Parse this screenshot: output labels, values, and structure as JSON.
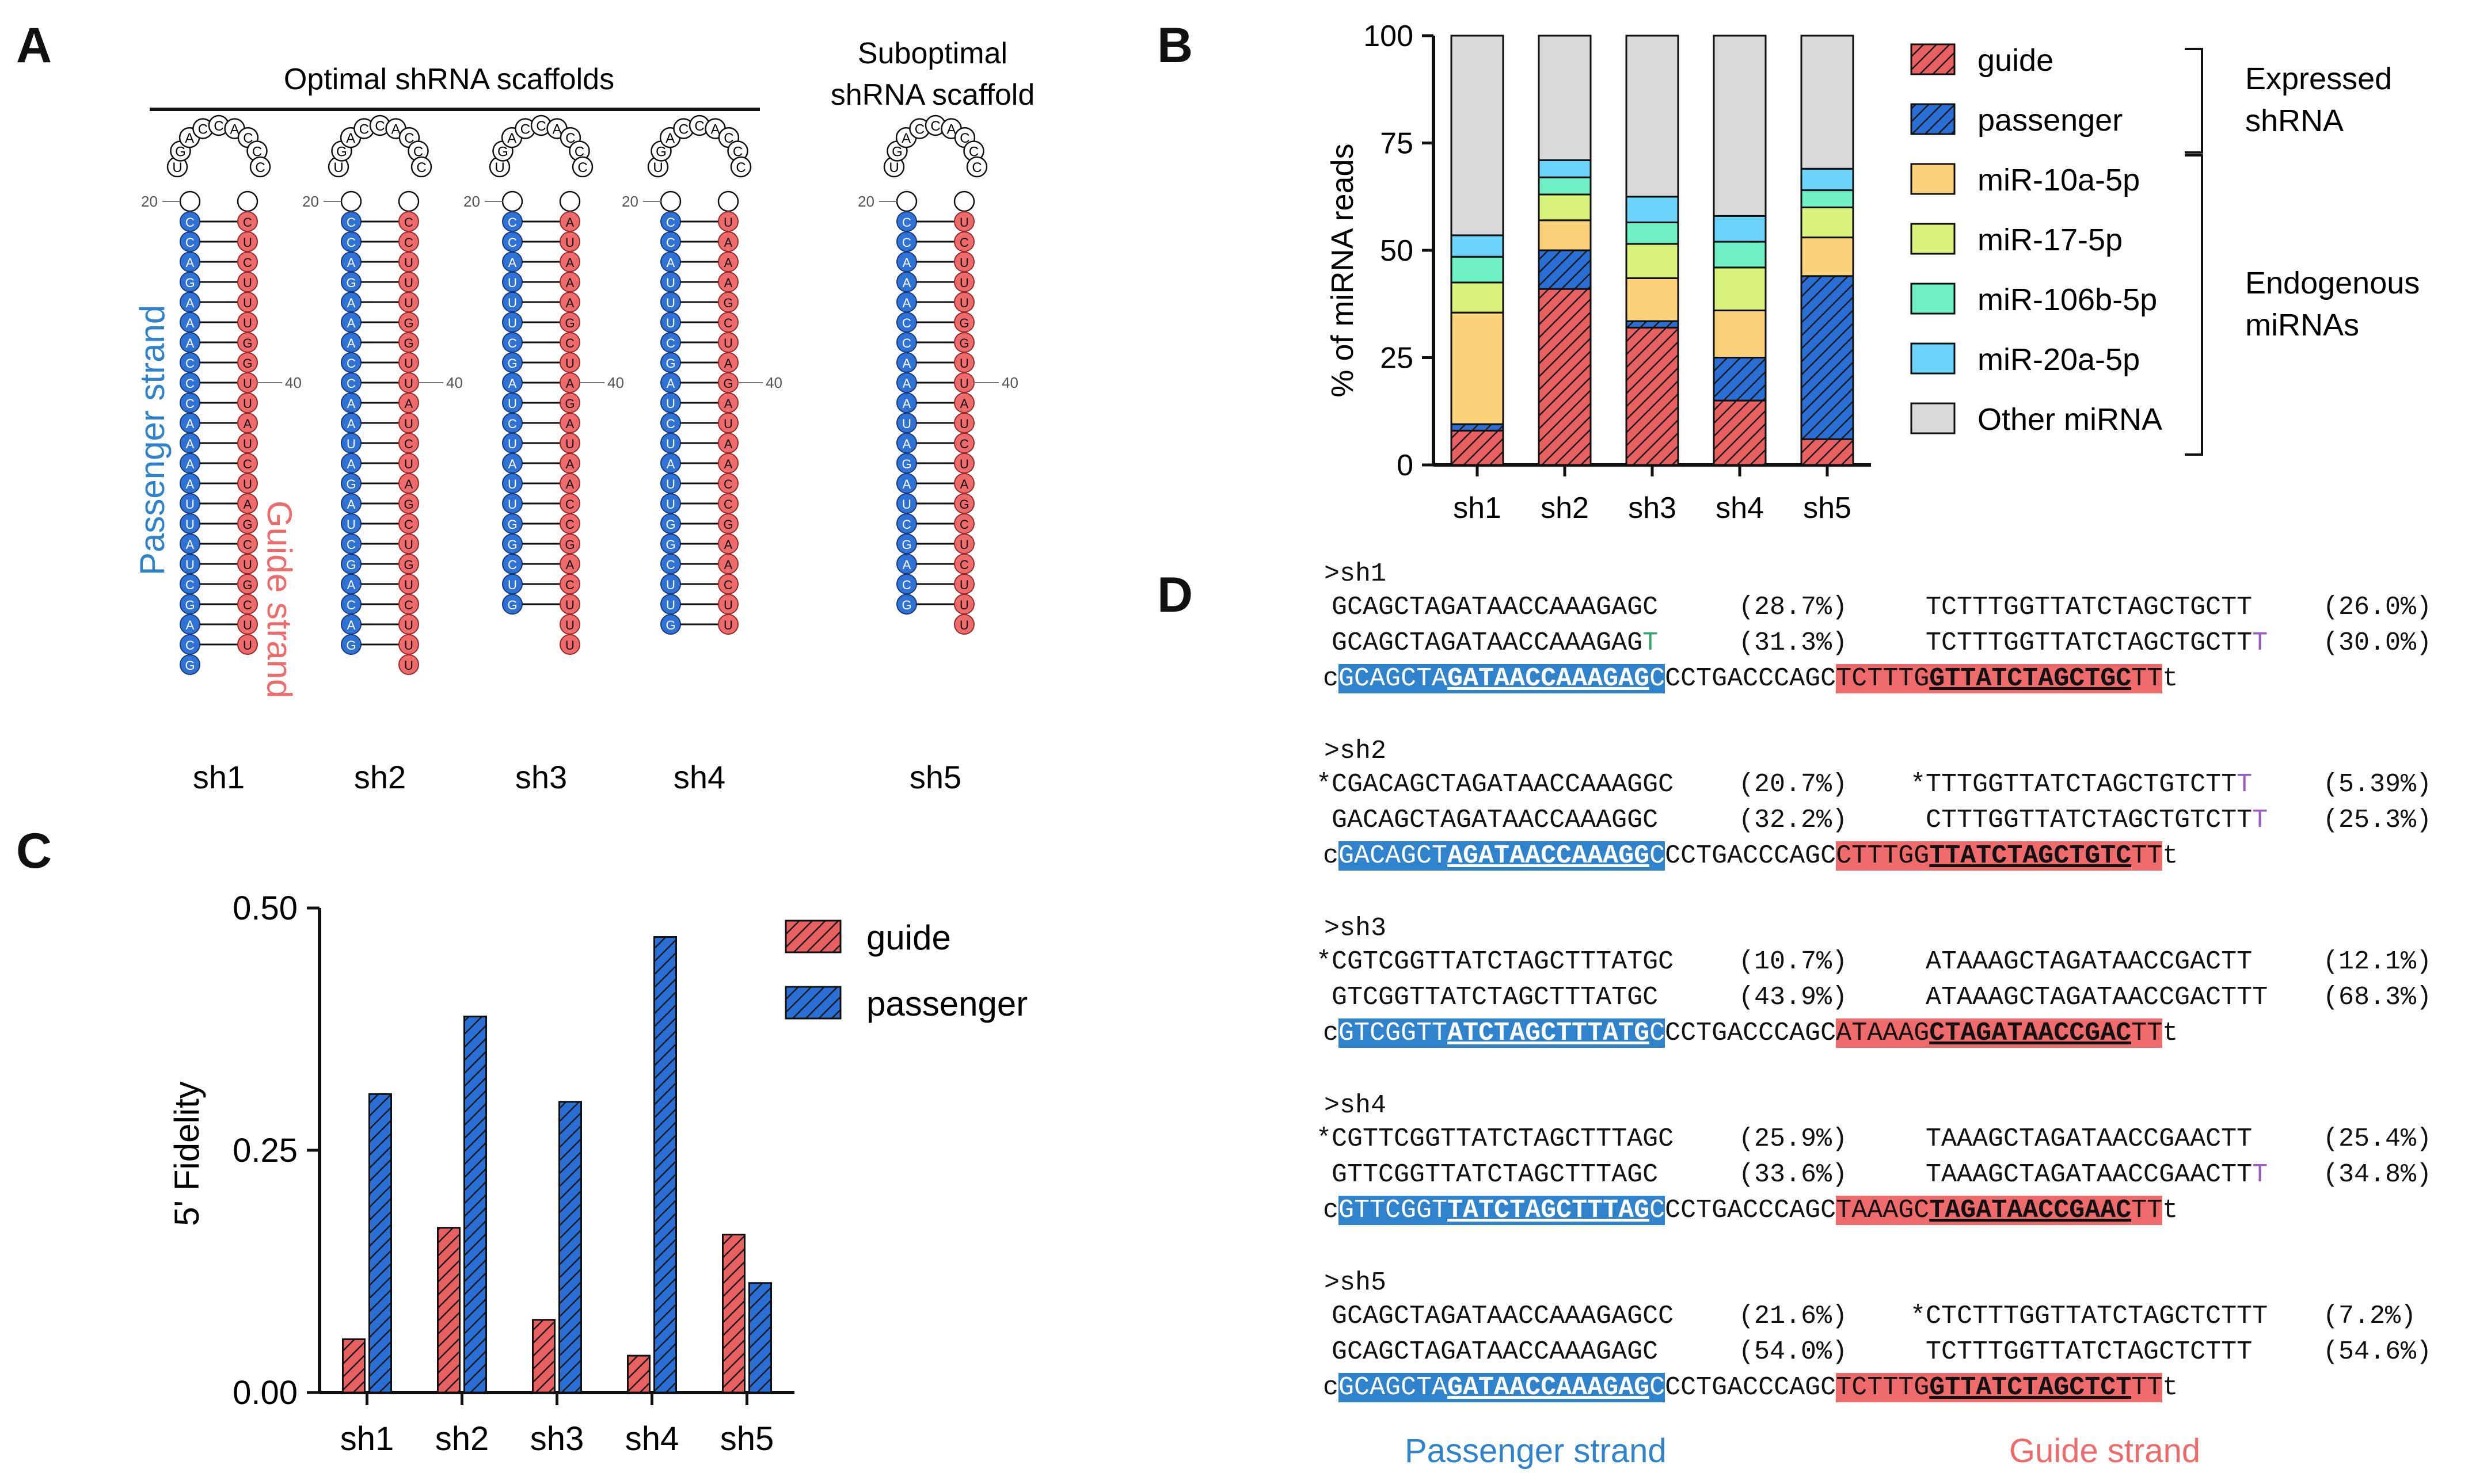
{
  "panels": {
    "a": "A",
    "b": "B",
    "c": "C",
    "d": "D"
  },
  "panelA": {
    "optimal_title": "Optimal shRNA scaffolds",
    "suboptimal_title_1": "Suboptimal",
    "suboptimal_title_2": "shRNA scaffold",
    "passenger_label": "Passenger strand",
    "guide_label": "Guide strand",
    "tick20": "20",
    "tick40": "40",
    "loop_letters": [
      "U",
      "G",
      "A",
      "C",
      "C",
      "A",
      "C",
      "C",
      "C"
    ],
    "hairpins": [
      {
        "name": "sh1",
        "passenger": "CCAGAAACCCAAAAUUAUCGACG",
        "guide": "CUCUUUGGUUAUCUAGCUGCUU",
        "top": "C",
        "gap_tail": 1
      },
      {
        "name": "sh2",
        "passenger": "CCAGAAACCAAUAGAUCGACAG",
        "guide": "CCUUUGGUUAUCUAGCUGUCUUU",
        "top": "C",
        "gap_tail": 2
      },
      {
        "name": "sh3",
        "passenger": "CCAUUUCGAUCUAUUGGCUG",
        "guide": "AUAAAGCUAGAUAACCGACUUU",
        "top": "C",
        "gap_tail": 2
      },
      {
        "name": "sh4",
        "passenger": "CCAUUUCGAUCUAUUGGCUUG",
        "guide": "UAAAGCUAGAUAACCGAACUU",
        "top": "C",
        "gap_tail": 1
      },
      {
        "name": "sh5",
        "passenger": "CCAAACCAAAUAGAUCGACG",
        "guide": "UCUUUGGUUAUCUAGCUCUUU",
        "top": "C",
        "gap_tail": 3
      }
    ]
  },
  "chartB": {
    "ylabel": "% of miRNA reads",
    "yticks": [
      "0",
      "25",
      "50",
      "75",
      "100"
    ],
    "legend_right_1": "Expressed",
    "legend_right_2": "shRNA",
    "legend_right_3": "Endogenous",
    "legend_right_4": "miRNAs"
  },
  "chartC": {
    "ylabel": "5' Fidelity",
    "yticks": [
      "0.00",
      "0.25",
      "0.50"
    ]
  },
  "panelD": {
    "passenger_label": "Passenger strand",
    "guide_label": "Guide strand"
  },
  "chart_data": [
    {
      "type": "bar",
      "stacked": true,
      "categories": [
        "sh1",
        "sh2",
        "sh3",
        "sh4",
        "sh5"
      ],
      "ylim": [
        0,
        100
      ],
      "ylabel": "% of miRNA reads",
      "series": [
        {
          "name": "guide",
          "values": [
            8,
            41,
            32,
            15,
            6
          ],
          "color": "#e8605f",
          "hatch": true
        },
        {
          "name": "passenger",
          "values": [
            1.5,
            9,
            1.5,
            10,
            38
          ],
          "color": "#2a6fd6",
          "hatch": true
        },
        {
          "name": "miR-10a-5p",
          "values": [
            26,
            7,
            10,
            11,
            9
          ],
          "color": "#fbd17a",
          "hatch": false
        },
        {
          "name": "miR-17-5p",
          "values": [
            7,
            6,
            8,
            10,
            7
          ],
          "color": "#d9f27a",
          "hatch": false
        },
        {
          "name": "miR-106b-5p",
          "values": [
            6,
            4,
            5,
            6,
            4
          ],
          "color": "#6ff0c4",
          "hatch": false
        },
        {
          "name": "miR-20a-5p",
          "values": [
            5,
            4,
            6,
            6,
            5
          ],
          "color": "#6cd3fb",
          "hatch": false
        },
        {
          "name": "Other miRNA",
          "values": [
            46.5,
            29,
            37.5,
            42,
            31
          ],
          "color": "#d9d9d9",
          "hatch": false
        }
      ]
    },
    {
      "type": "bar",
      "categories": [
        "sh1",
        "sh2",
        "sh3",
        "sh4",
        "sh5"
      ],
      "ylim": [
        0,
        0.5
      ],
      "ylabel": "5' Fidelity",
      "series": [
        {
          "name": "guide",
          "values": [
            0.055,
            0.17,
            0.075,
            0.038,
            0.163
          ],
          "color": "#e8605f"
        },
        {
          "name": "passenger",
          "values": [
            0.308,
            0.388,
            0.3,
            0.47,
            0.113
          ],
          "color": "#2a6fd6"
        }
      ]
    }
  ],
  "seqblocks": [
    {
      "header": ">sh1",
      "rows": [
        {
          "p": " GCAGCTAGATAACCAAAGAGC",
          "pp": "(28.7%)",
          "g": "TCTTTGGTTATCTAGCTGCTT",
          "gp": "(26.0%)"
        },
        {
          "p": " GCAGCTAGATAACCAAAGAG",
          "pmark": "T",
          "pmarkc": "green",
          "pp": "(31.3%)",
          "g": "TCTTTGGTTATCTAGCTGCTT",
          "gmark": "T",
          "gmarkc": "purple",
          "gp": "(30.0%)"
        }
      ],
      "hl": {
        "lead": "c",
        "b1": "GCAGCTA",
        "b2": "GATAACCAAAGAG",
        "b3": "C",
        "mid": "CCTGACCCAGC",
        "r1": "TCTTTG",
        "r2": "GTTATCTAGCTGC",
        "r3": "TT",
        "tail": "t"
      }
    },
    {
      "header": ">sh2",
      "rows": [
        {
          "p": "*CGACAGCTAGATAACCAAAGGC",
          "pp": "(20.7%)",
          "g": "*TTTGGTTATCTAGCTGTCTT",
          "gmark": "T",
          "gmarkc": "purple",
          "gp": "(5.39%)"
        },
        {
          "p": " GACAGCTAGATAACCAAAGGC",
          "pp": "(32.2%)",
          "g": "CTTTGGTTATCTAGCTGTCTT",
          "gmark": "T",
          "gmarkc": "purple",
          "gp": "(25.3%)"
        }
      ],
      "hl": {
        "lead": "c",
        "b1": "GACAGCT",
        "b2": "AGATAACCAAAGG",
        "b3": "C",
        "mid": "CCTGACCCAGC",
        "r1": "CTTTGG",
        "r2": "TTATCTAGCTGTC",
        "r3": "TT",
        "tail": "t"
      }
    },
    {
      "header": ">sh3",
      "rows": [
        {
          "p": "*CGTCGGTTATCTAGCTTTATGC",
          "pp": "(10.7%)",
          "g": "ATAAAGCTAGATAACCGACTT",
          "gp": "(12.1%)"
        },
        {
          "p": " GTCGGTTATCTAGCTTTATGC",
          "pp": "(43.9%)",
          "g": "ATAAAGCTAGATAACCGACTTT",
          "gp": "(68.3%)"
        }
      ],
      "hl": {
        "lead": "c",
        "b1": "GTCGGTT",
        "b2": "ATCTAGCTTTATG",
        "b3": "C",
        "mid": "CCTGACCCAGC",
        "r1": "ATAAAG",
        "r2": "CTAGATAACCGAC",
        "r3": "TT",
        "tail": "t"
      }
    },
    {
      "header": ">sh4",
      "rows": [
        {
          "p": "*CGTTCGGTTATCTAGCTTTAGC",
          "pp": "(25.9%)",
          "g": "TAAAGCTAGATAACCGAACTT",
          "gp": "(25.4%)"
        },
        {
          "p": " GTTCGGTTATCTAGCTTTAGC",
          "pp": "(33.6%)",
          "g": "TAAAGCTAGATAACCGAACTT",
          "gmark": "T",
          "gmarkc": "purple",
          "gp": "(34.8%)"
        }
      ],
      "hl": {
        "lead": "c",
        "b1": "GTTCGGT",
        "b2": "TATCTAGCTTTAG",
        "b3": "C",
        "mid": "CCTGACCCAGC",
        "r1": "TAAAGC",
        "r2": "TAGATAACCGAAC",
        "r3": "TT",
        "tail": "t"
      }
    },
    {
      "header": ">sh5",
      "rows": [
        {
          "p": " GCAGCTAGATAACCAAAGAGCC",
          "pp": "(21.6%)",
          "g": "*CTCTTTGGTTATCTAGCTCTTT",
          "gp": "(7.2%)"
        },
        {
          "p": " GCAGCTAGATAACCAAAGAGC",
          "pp": "(54.0%)",
          "g": "TCTTTGGTTATCTAGCTCTTT",
          "gp": "(54.6%)"
        }
      ],
      "hl": {
        "lead": "c",
        "b1": "GCAGCTA",
        "b2": "GATAACCAAAGAG",
        "b3": "C",
        "mid": "CCTGACCCAGC",
        "r1": "TCTTTG",
        "r2": "GTTATCTAGCTCT",
        "r3": "TT",
        "tail": "t"
      }
    }
  ]
}
